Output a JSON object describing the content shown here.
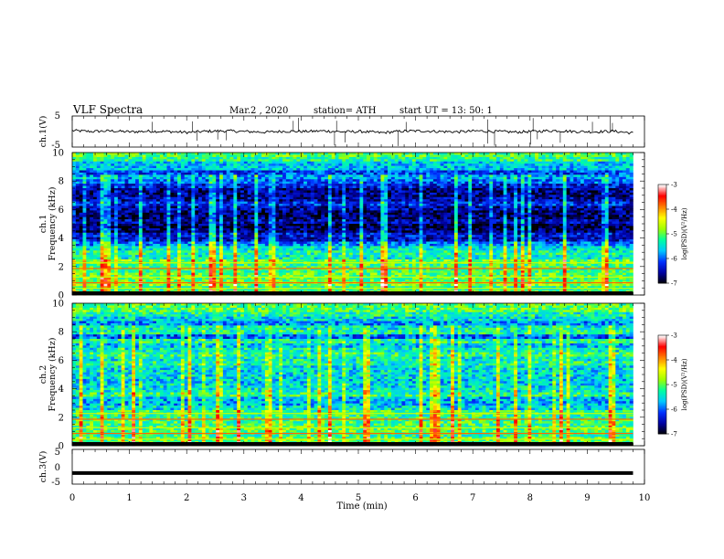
{
  "header": {
    "title": "VLF  Spectra",
    "date": "Mar.2  , 2020",
    "station": "station= ATH",
    "start": "start  UT  =    13: 50: 1"
  },
  "chart_data": [
    {
      "type": "line",
      "name": "ch1-waveform",
      "ylabel": "ch.1(V)",
      "ylim": [
        -5,
        5
      ],
      "yticks": [
        "5",
        "-5"
      ],
      "trend": [
        0.3,
        0.0,
        0.2,
        -0.1,
        0.1,
        0.0,
        -0.3,
        0.1,
        0.2,
        0.0,
        -0.2,
        0.1,
        0.0,
        0.2,
        -0.1,
        0.0,
        -0.4,
        0.1,
        0.2,
        0.0,
        -0.1,
        0.2,
        0.0,
        -0.2,
        0.1,
        0.3,
        0.0,
        -0.1,
        0.1,
        -0.5
      ]
    },
    {
      "type": "heatmap",
      "name": "ch1-spectrogram",
      "ylabel_top": "ch.1",
      "ylabel": "Frequency  (kHz)",
      "ylim": [
        0,
        10
      ],
      "yticks": [
        "0",
        "2",
        "4",
        "6",
        "8",
        "10"
      ],
      "profile_log_psd": [
        -5.0,
        -5.2,
        -5.6,
        -5.6,
        -6.1,
        -5.8,
        -6.0,
        -6.3,
        -6.6,
        -6.6,
        -6.5,
        -6.2,
        -6.5,
        -6.7,
        -6.7,
        -6.5,
        -6.8,
        -6.7,
        -6.3,
        -6.4,
        -5.9,
        -5.5,
        -5.3,
        -5.4,
        -4.9,
        -5.1,
        -5.1,
        -5.0,
        -5.0,
        -4.8,
        -5.2,
        -4.9
      ],
      "colorbar": {
        "label": "log(PSD)(V²/Hz)",
        "range": [
          -7,
          -3
        ],
        "ticks": [
          "-3",
          "-4",
          "-5",
          "-6",
          "-7"
        ]
      }
    },
    {
      "type": "heatmap",
      "name": "ch2-spectrogram",
      "ylabel_top": "ch.2",
      "ylabel": "Frequency  (kHz)",
      "ylim": [
        0,
        10
      ],
      "yticks": [
        "0",
        "2",
        "4",
        "6",
        "8",
        "10"
      ],
      "profile_log_psd": [
        -5.0,
        -5.0,
        -5.3,
        -5.5,
        -5.8,
        -5.4,
        -5.3,
        -6.0,
        -5.3,
        -5.6,
        -5.4,
        -5.2,
        -5.4,
        -5.3,
        -5.5,
        -5.5,
        -5.5,
        -5.6,
        -5.5,
        -5.4,
        -5.2,
        -5.7,
        -5.7,
        -5.5,
        -5.1,
        -5.2,
        -5.1,
        -5.1,
        -5.0,
        -5.2,
        -5.0,
        -5.0
      ],
      "colorbar": {
        "label": "log(PSD)(V²/Hz)",
        "range": [
          -7,
          -3
        ],
        "ticks": [
          "-3",
          "-4",
          "-5",
          "-6",
          "-7"
        ]
      }
    },
    {
      "type": "line",
      "name": "ch3-waveform",
      "ylabel": "ch.3(V)",
      "ylim": [
        -5,
        5
      ],
      "yticks": [
        "5",
        "0",
        "-5"
      ],
      "constant": -1.8
    }
  ],
  "xaxis": {
    "label": "Time  (min)",
    "range": [
      0,
      10
    ],
    "ticks": [
      "0",
      "1",
      "2",
      "3",
      "4",
      "5",
      "6",
      "7",
      "8",
      "9",
      "10"
    ],
    "data_end": 9.8
  },
  "colors": {
    "psd_colormap": [
      "#000000",
      "#0000a0",
      "#0030ff",
      "#00c8ff",
      "#00ffa0",
      "#a0ff00",
      "#ffff00",
      "#ff8000",
      "#ff0000",
      "#ffffff"
    ]
  }
}
